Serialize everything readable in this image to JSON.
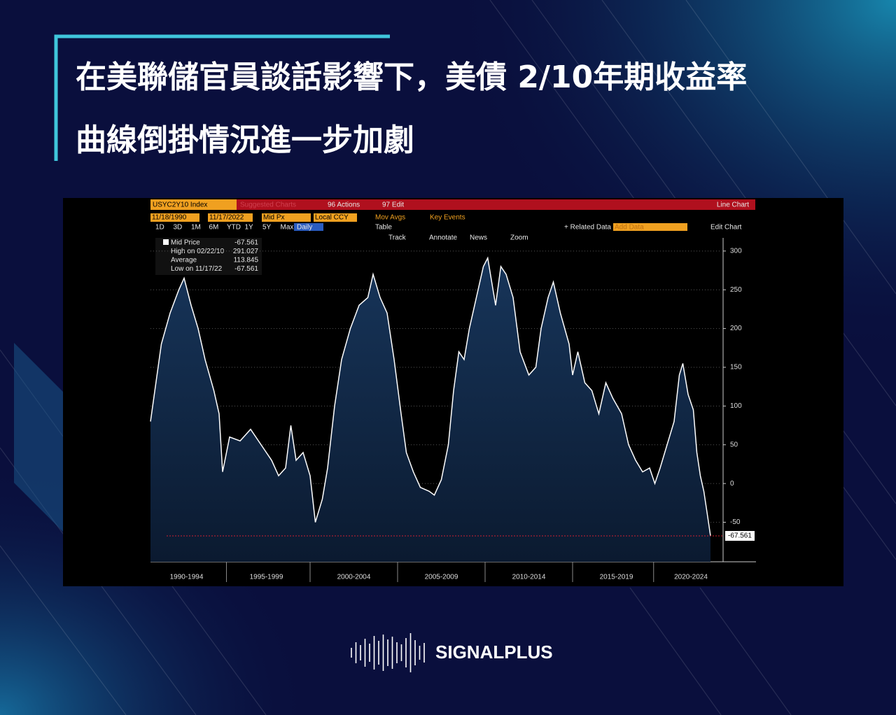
{
  "header": {
    "title_line1": "在美聯儲官員談話影響下，美債 2/10年期收益率",
    "title_line2": "曲線倒掛情況進一步加劇"
  },
  "toolbar": {
    "ticker": "USYC2Y10 Index",
    "suggested": "Suggested Charts",
    "actions": "96 Actions",
    "edit": "97 Edit",
    "chart_kind": "Line Chart",
    "start_date": "11/18/1990",
    "end_date": "11/17/2022",
    "field": "Mid Px",
    "currency": "Local CCY",
    "mov_avgs": "Mov Avgs",
    "key_events": "Key Events",
    "periods": [
      "1D",
      "3D",
      "1M",
      "6M",
      "YTD",
      "1Y",
      "5Y",
      "Max"
    ],
    "frequency": "Daily",
    "table": "Table",
    "related": "+ Related Data",
    "add_data": "Add Data",
    "edit_chart": "Edit Chart",
    "tools": [
      "Track",
      "Annotate",
      "News",
      "Zoom"
    ]
  },
  "legend_box": {
    "rows": [
      [
        "Mid Price",
        -67.561
      ],
      [
        "High on 02/22/10",
        291.027
      ],
      [
        "Average",
        113.845
      ],
      [
        "Low on 11/17/22",
        -67.561
      ]
    ]
  },
  "chart_data": {
    "type": "line",
    "color": "#ffffff",
    "x": [
      1990.88,
      1991.5,
      1992.0,
      1992.5,
      1992.8,
      1993.2,
      1993.6,
      1994.0,
      1994.5,
      1994.8,
      1995.0,
      1995.4,
      1996.0,
      1996.6,
      1997.2,
      1997.8,
      1998.2,
      1998.6,
      1998.9,
      1999.2,
      1999.6,
      2000.0,
      2000.3,
      2000.7,
      2001.0,
      2001.4,
      2001.8,
      2002.3,
      2002.8,
      2003.3,
      2003.6,
      2004.0,
      2004.4,
      2004.8,
      2005.2,
      2005.5,
      2005.9,
      2006.3,
      2006.8,
      2007.1,
      2007.5,
      2007.9,
      2008.2,
      2008.5,
      2008.8,
      2009.1,
      2009.5,
      2009.9,
      2010.15,
      2010.6,
      2010.9,
      2011.2,
      2011.6,
      2012.0,
      2012.5,
      2012.9,
      2013.2,
      2013.6,
      2013.9,
      2014.3,
      2014.8,
      2015.0,
      2015.3,
      2015.7,
      2016.1,
      2016.5,
      2016.9,
      2017.3,
      2017.8,
      2018.2,
      2018.6,
      2019.0,
      2019.4,
      2019.7,
      2020.0,
      2020.4,
      2020.8,
      2021.1,
      2021.3,
      2021.6,
      2021.9,
      2022.1,
      2022.3,
      2022.5,
      2022.7,
      2022.88
    ],
    "values": [
      80,
      180,
      220,
      250,
      265,
      230,
      200,
      160,
      120,
      90,
      15,
      60,
      55,
      70,
      50,
      30,
      10,
      20,
      75,
      30,
      40,
      10,
      -50,
      -20,
      20,
      100,
      160,
      200,
      230,
      240,
      270,
      240,
      220,
      160,
      90,
      40,
      15,
      -5,
      -10,
      -15,
      5,
      50,
      120,
      170,
      160,
      200,
      240,
      280,
      291.027,
      230,
      280,
      270,
      240,
      170,
      140,
      150,
      200,
      240,
      260,
      220,
      180,
      140,
      170,
      130,
      120,
      90,
      130,
      110,
      90,
      50,
      30,
      15,
      20,
      0,
      20,
      50,
      80,
      140,
      155,
      115,
      95,
      40,
      10,
      -10,
      -40,
      -67.561
    ],
    "xlim": [
      1990.88,
      2022.88
    ],
    "xticks": [
      {
        "value": 1992.94,
        "label": "1990-1994"
      },
      {
        "value": 1997.5,
        "label": "1995-1999"
      },
      {
        "value": 2002.5,
        "label": "2000-2004"
      },
      {
        "value": 2007.5,
        "label": "2005-2009"
      },
      {
        "value": 2012.5,
        "label": "2010-2014"
      },
      {
        "value": 2017.5,
        "label": "2015-2019"
      },
      {
        "value": 2021.76,
        "label": "2020-2024"
      }
    ],
    "ylim": [
      -101,
      317
    ],
    "yticks": [
      -50,
      0,
      50,
      100,
      150,
      200,
      250,
      300
    ],
    "grid": true
  },
  "brand": {
    "name": "SIGNALPLUS"
  }
}
